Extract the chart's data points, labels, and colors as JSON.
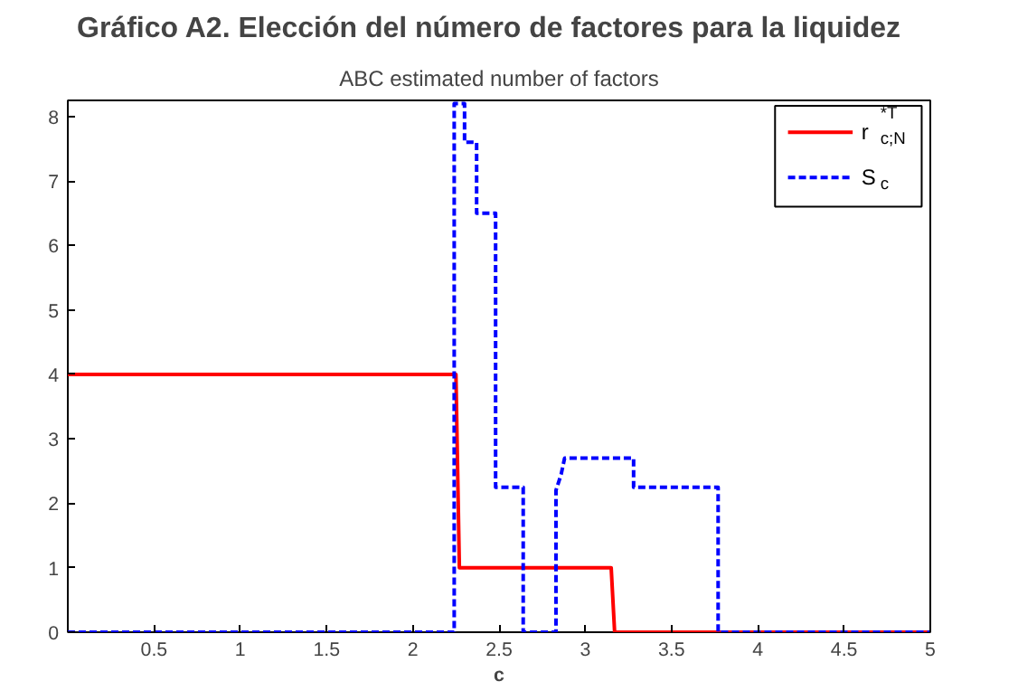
{
  "chart_data": {
    "type": "line",
    "title": "Gráfico A2. Elección del número de factores para la liquidez",
    "subtitle": "ABC estimated number of factors",
    "xlabel": "c",
    "series": [
      {
        "name": "r$^{*T}$$_{c;N}$",
        "color": "#ff0000",
        "line_style": "solid",
        "x": [
          0,
          2.25,
          2.27,
          3.15,
          3.17,
          5
        ],
        "values": [
          4,
          4,
          1,
          1,
          0,
          0
        ]
      },
      {
        "name": "S$_{c}$",
        "color": "#0000ff",
        "line_style": "dashed",
        "x": [
          0,
          2.24,
          2.24,
          2.3,
          2.3,
          2.37,
          2.37,
          2.48,
          2.48,
          2.64,
          2.64,
          2.83,
          2.83,
          2.86,
          2.88,
          3.28,
          3.28,
          3.77,
          3.77,
          5
        ],
        "values": [
          0,
          0,
          8.2,
          8.2,
          7.6,
          7.6,
          6.5,
          6.5,
          2.25,
          2.25,
          0,
          0,
          2.2,
          2.45,
          2.7,
          2.7,
          2.25,
          2.25,
          0,
          0
        ]
      }
    ],
    "xlim": [
      0,
      5
    ],
    "ylim": [
      0,
      8.25
    ],
    "xticks": [
      0.5,
      1,
      1.5,
      2,
      2.5,
      3,
      3.5,
      4,
      4.5,
      5
    ],
    "yticks": [
      0,
      1,
      2,
      3,
      4,
      5,
      6,
      7,
      8
    ],
    "grid": false,
    "legend": "top right"
  }
}
